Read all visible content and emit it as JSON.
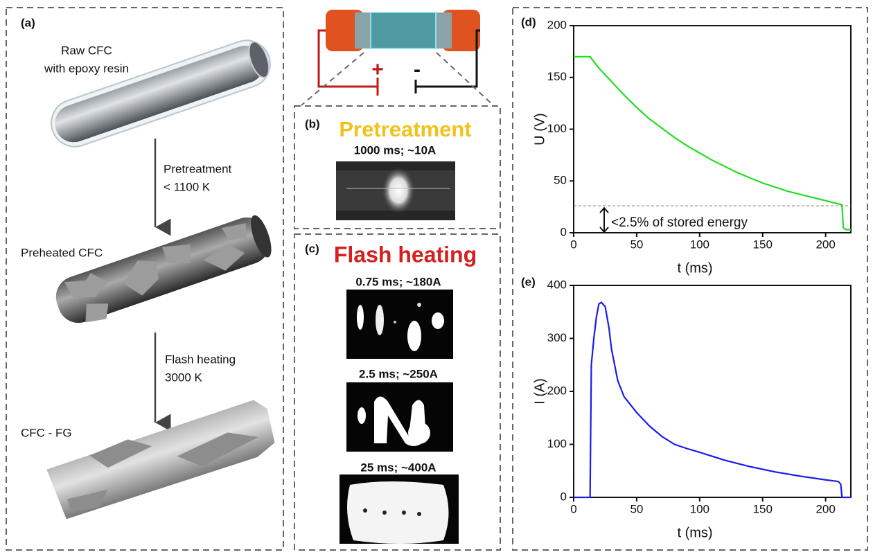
{
  "panel_a": {
    "label": "(a)",
    "steps": [
      {
        "lines": [
          "Raw CFC",
          "with epoxy resin"
        ]
      },
      {
        "lines": [
          "Preheated CFC"
        ]
      },
      {
        "lines": [
          "CFC - FG"
        ]
      }
    ],
    "arrows": [
      {
        "lines": [
          "Pretreatment",
          "< 1100 K"
        ]
      },
      {
        "lines": [
          "Flash heating",
          "3000 K"
        ]
      }
    ]
  },
  "circuit": {
    "positive": "+",
    "negative": "-"
  },
  "panel_b": {
    "label": "(b)",
    "title": "Pretreatment",
    "frames": [
      "1000 ms; ~10A"
    ]
  },
  "panel_c": {
    "label": "(c)",
    "title": "Flash heating",
    "frames": [
      "0.75 ms; ~180A",
      "2.5 ms; ~250A",
      "25 ms; ~400A"
    ]
  },
  "chart_data": [
    {
      "type": "line",
      "panel_label": "(d)",
      "xlabel": "t (ms)",
      "ylabel": "U (V)",
      "color": "#22dd22",
      "x": [
        0,
        10,
        13,
        20,
        30,
        40,
        50,
        60,
        70,
        80,
        90,
        100,
        110,
        120,
        130,
        140,
        150,
        160,
        170,
        180,
        190,
        200,
        210,
        213,
        214,
        216,
        220
      ],
      "values": [
        170,
        170,
        170,
        159,
        146,
        133,
        121,
        110,
        101,
        92,
        84,
        77,
        70,
        64,
        58,
        53,
        48,
        44,
        40,
        37,
        34,
        31,
        28,
        27,
        5,
        3,
        3
      ],
      "xlim": [
        0,
        220
      ],
      "ylim": [
        0,
        200
      ],
      "xticks": [
        0,
        50,
        100,
        150,
        200
      ],
      "yticks": [
        0,
        50,
        100,
        150,
        200
      ],
      "reference_line": 26,
      "annotation": "<2.5% of stored energy"
    },
    {
      "type": "line",
      "panel_label": "(e)",
      "xlabel": "t (ms)",
      "ylabel": "I (A)",
      "color": "#1a1aee",
      "x": [
        0,
        13,
        14,
        16,
        18,
        20,
        22,
        25,
        28,
        30,
        35,
        40,
        50,
        60,
        70,
        80,
        90,
        100,
        120,
        140,
        160,
        180,
        200,
        210,
        212,
        213,
        220
      ],
      "values": [
        0,
        0,
        250,
        300,
        340,
        365,
        368,
        360,
        320,
        280,
        220,
        190,
        160,
        135,
        115,
        100,
        92,
        85,
        70,
        58,
        48,
        40,
        33,
        30,
        25,
        0,
        0
      ],
      "xlim": [
        0,
        220
      ],
      "ylim": [
        0,
        400
      ],
      "xticks": [
        0,
        50,
        100,
        150,
        200
      ],
      "yticks": [
        0,
        100,
        200,
        300,
        400
      ]
    }
  ]
}
